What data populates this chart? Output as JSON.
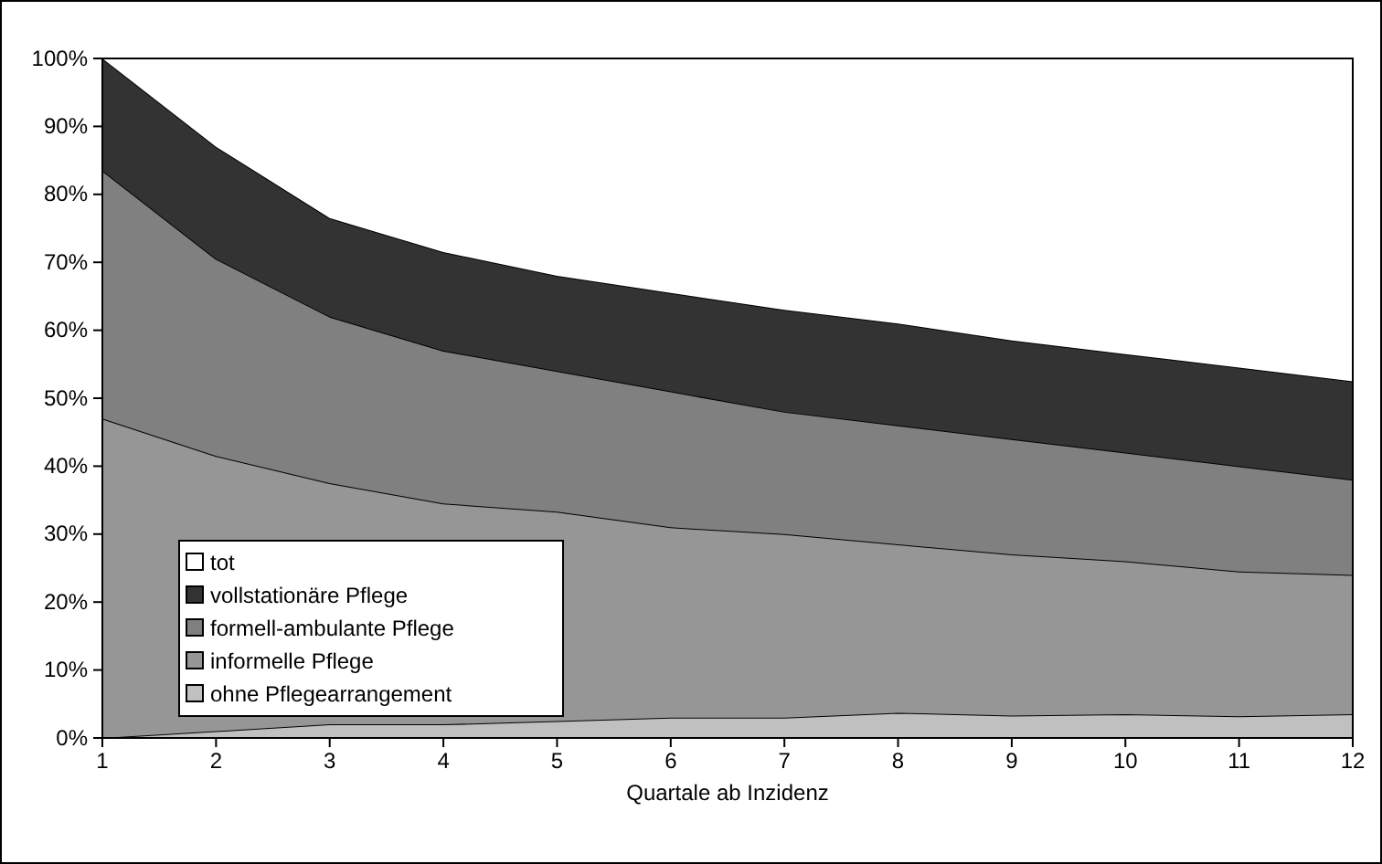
{
  "chart_data": {
    "type": "area",
    "stacked": true,
    "xlabel": "Quartale ab Inzidenz",
    "x": [
      1,
      2,
      3,
      4,
      5,
      6,
      7,
      8,
      9,
      10,
      11,
      12
    ],
    "xlim": [
      1,
      12
    ],
    "xticks": [
      1,
      2,
      3,
      4,
      5,
      6,
      7,
      8,
      9,
      10,
      11,
      12
    ],
    "ylim": [
      0,
      100
    ],
    "yticks": [
      {
        "value": 0,
        "label": "0%"
      },
      {
        "value": 10,
        "label": "10%"
      },
      {
        "value": 20,
        "label": "20%"
      },
      {
        "value": 30,
        "label": "30%"
      },
      {
        "value": 40,
        "label": "40%"
      },
      {
        "value": 50,
        "label": "50%"
      },
      {
        "value": 60,
        "label": "60%"
      },
      {
        "value": 70,
        "label": "70%"
      },
      {
        "value": 80,
        "label": "80%"
      },
      {
        "value": 90,
        "label": "90%"
      },
      {
        "value": 100,
        "label": "100%"
      }
    ],
    "legend": "bottom left",
    "series": [
      {
        "name": "ohne Pflegearrangement",
        "color": "#c0c0c0",
        "values": [
          0,
          1,
          2,
          2,
          2.5,
          3,
          3,
          3.7,
          3.3,
          3.5,
          3.2,
          3.5
        ]
      },
      {
        "name": "informelle Pflege",
        "color": "#969696",
        "values": [
          47,
          40.5,
          35.5,
          32.5,
          30.8,
          28,
          27,
          24.8,
          23.7,
          22.5,
          21.3,
          20.5
        ]
      },
      {
        "name": "formell-ambulante Pflege",
        "color": "#808080",
        "values": [
          36.5,
          29,
          24.5,
          22.5,
          20.7,
          20,
          18,
          17.5,
          17,
          16,
          15.5,
          14
        ]
      },
      {
        "name": "vollstationäre Pflege",
        "color": "#333333",
        "values": [
          16.5,
          16.5,
          14.5,
          14.5,
          14,
          14.5,
          15,
          15,
          14.5,
          14.5,
          14.5,
          14.5
        ]
      },
      {
        "name": "tot",
        "color": "#ffffff",
        "values": [
          0,
          13,
          23.5,
          28.5,
          32,
          34.5,
          37,
          39,
          41.5,
          43.5,
          45.5,
          47.5
        ]
      }
    ]
  }
}
